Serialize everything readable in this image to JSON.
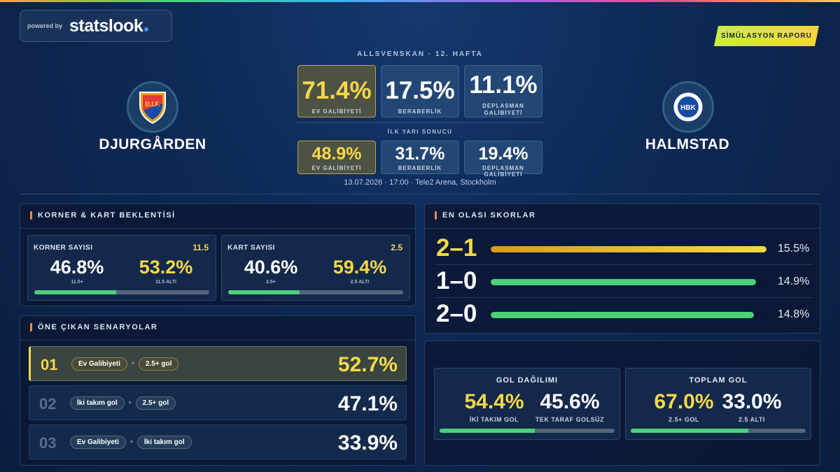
{
  "brand": {
    "powered_by": "powered by",
    "logo": "statslook"
  },
  "report_badge": "SİMÜLASYON RAPORU",
  "league": "ALLSVENSKAN · 12. HAFTA",
  "home_team": {
    "name": "DJURGÅRDEN",
    "logo_icon": "djurgarden-crest-icon",
    "logo_text": "D.I.F."
  },
  "away_team": {
    "name": "HALMSTAD",
    "logo_icon": "halmstad-crest-icon",
    "logo_text": "HBK"
  },
  "full_time": [
    {
      "value": "71.4%",
      "label": "EV GALİBİYETİ",
      "highlight": true
    },
    {
      "value": "17.5%",
      "label": "BERABERLİK",
      "highlight": false
    },
    {
      "value": "11.1%",
      "label_lines": [
        "DEPLASMAN",
        "GALİBİYETİ"
      ],
      "highlight": false
    }
  ],
  "half_time": {
    "title": "İLK YARI SONUCU",
    "items": [
      {
        "value": "48.9%",
        "label": "EV GALİBİYETİ",
        "highlight": true
      },
      {
        "value": "31.7%",
        "label": "BERABERLİK",
        "highlight": false
      },
      {
        "value": "19.4%",
        "label": "DEPLASMAN GALİBİYETİ",
        "highlight": false
      }
    ]
  },
  "match_info": "13.07.2026 · 17:00 · Tele2 Arena, Stockholm",
  "corners_cards": {
    "title": "KORNER & KART BEKLENTİSİ",
    "corners": {
      "title": "KORNER SAYISI",
      "line": "11.5",
      "over": "46.8%",
      "over_label": "11.5+",
      "under": "53.2%",
      "under_label": "11.5 ALTI",
      "over_pct": 46.8
    },
    "cards": {
      "title": "KART SAYISI",
      "line": "2.5",
      "over": "40.6%",
      "over_label": "2.5+",
      "under": "59.4%",
      "under_label": "2.5 ALTI",
      "over_pct": 40.6
    }
  },
  "scenarios": {
    "title": "ÖNE ÇIKAN SENARYOLAR",
    "items": [
      {
        "num": "01",
        "chips": [
          "Ev Galibiyeti",
          "2.5+ gol"
        ],
        "value": "52.7%",
        "highlight": true
      },
      {
        "num": "02",
        "chips": [
          "İki takım gol",
          "2.5+ gol"
        ],
        "value": "47.1%",
        "highlight": false
      },
      {
        "num": "03",
        "chips": [
          "Ev Galibiyeti",
          "İki takım gol"
        ],
        "value": "33.9%",
        "highlight": false
      }
    ],
    "plus": "+"
  },
  "scores": {
    "title": "EN OLASI SKORLAR",
    "max_pct": 15.5,
    "items": [
      {
        "label": "2–1",
        "value": "15.5%",
        "pct": 15.5,
        "top": true
      },
      {
        "label": "1–0",
        "value": "14.9%",
        "pct": 14.9,
        "top": false
      },
      {
        "label": "2–0",
        "value": "14.8%",
        "pct": 14.8,
        "top": false
      }
    ]
  },
  "goal_dist": {
    "title": "GOL DAĞILIMI",
    "a": "54.4%",
    "a_label": "İKİ TAKIM GOL",
    "b": "45.6%",
    "b_label": "TEK TARAF GOLSÜZ",
    "a_pct": 54.4
  },
  "total_goals": {
    "title": "TOPLAM GOL",
    "a": "67.0%",
    "a_label": "2.5+ GOL",
    "b": "33.0%",
    "b_label": "2.5 ALTI",
    "a_pct": 67.0
  },
  "colors": {
    "accent": "#f7d847",
    "green": "#4ad27a",
    "orange": "#f08a4a"
  }
}
